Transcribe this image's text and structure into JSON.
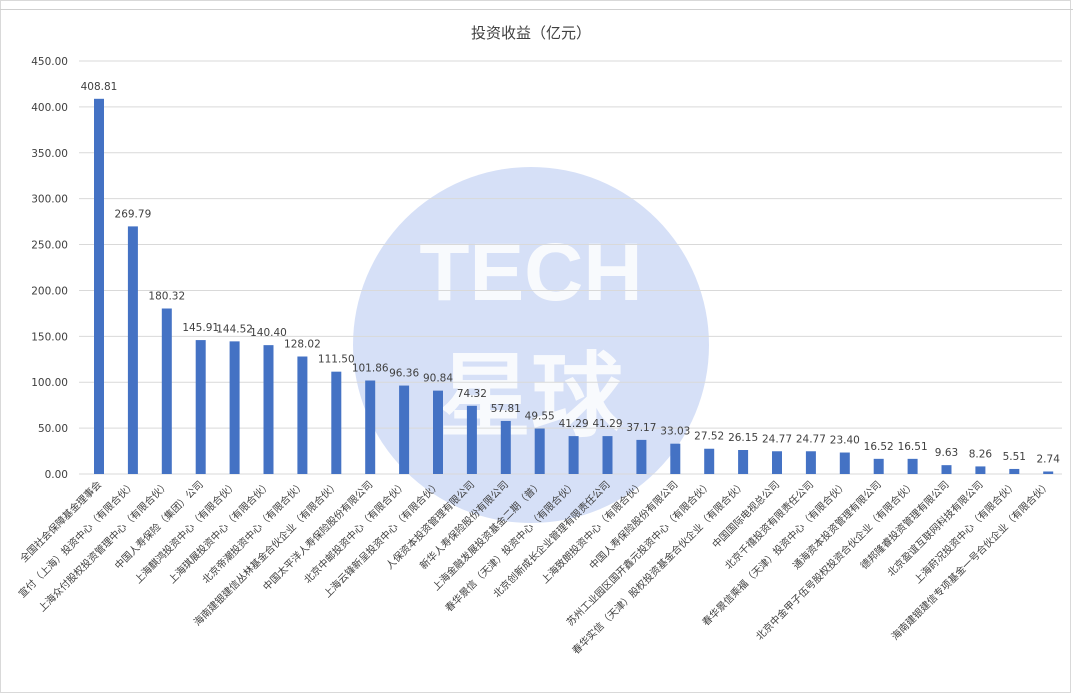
{
  "watermark": {
    "text_top": "TECH",
    "text_bottom": "星球",
    "color": "#6c8fe4"
  },
  "colors": {
    "bar": "#4472c4",
    "gridline": "#d9d9d9",
    "axis_text": "#404040",
    "title": "#404040"
  },
  "chart_data": {
    "type": "bar",
    "title": "投资收益（亿元）",
    "xlabel": "",
    "ylabel": "",
    "ylim": [
      0,
      450
    ],
    "yticks": [
      "0.00",
      "50.00",
      "100.00",
      "150.00",
      "200.00",
      "250.00",
      "300.00",
      "350.00",
      "400.00",
      "450.00"
    ],
    "grid": true,
    "legend": "none",
    "categories": [
      "全国社会保障基金理事会",
      "宣付（上海）投资中心（有限合伙）",
      "上海众付股权投资管理中心（有限合伙）",
      "中国人寿保险（集团）公司",
      "上海麒鸿投资中心（有限合伙）",
      "上海琪展投资中心（有限合伙）",
      "北京帝潮投资中心（有限合伙）",
      "海南建银建信丛林基金合伙企业（有限合伙）",
      "中国太平洋人寿保险股份有限公司",
      "北京中邮投资中心（有限合伙）",
      "上海云锋新呈投资中心（有限合伙）",
      "人保资本投资管理有限公司",
      "新华人寿保险股份有限公司",
      "上海金融发展投资基金二期（普）",
      "春华景信（天津）投资中心（有限合伙）",
      "北京创新成长企业管理有限责任公司",
      "上海致朗投资中心（有限合伙）",
      "中国人寿保险股份有限公司",
      "苏州工业园区国开鑫元投资中心（有限合伙）",
      "春华实信（天津）股权投资基金合伙企业（有限合伙）",
      "中国国际电视总公司",
      "北京千禧投资有限责任公司",
      "春华景信乘福（天津）投资中心（有限合伙）",
      "通海资本投资管理有限公司",
      "北京中金甲子伍号股权投资合伙企业（有限合伙）",
      "德邦隆睿投资管理有限公司",
      "北京盈谊互联网科技有限公司",
      "上海莳况投资中心（有限合伙）",
      "海南建银建信专项基金一号合伙企业（有限合伙）"
    ],
    "values": [
      408.81,
      269.79,
      180.32,
      145.91,
      144.52,
      140.4,
      128.02,
      111.5,
      101.86,
      96.36,
      90.84,
      74.32,
      57.81,
      49.55,
      41.29,
      41.29,
      37.17,
      33.03,
      27.52,
      26.15,
      24.77,
      24.77,
      23.4,
      16.52,
      16.51,
      9.63,
      8.26,
      5.51,
      2.74
    ],
    "data_labels": [
      "408.81",
      "269.79",
      "180.32",
      "145.91",
      "144.52",
      "140.40",
      "128.02",
      "111.50",
      "101.86",
      "96.36",
      "90.84",
      "74.32",
      "57.81",
      "49.55",
      "41.29",
      "41.29",
      "37.17",
      "33.03",
      "27.52",
      "26.15",
      "24.77",
      "24.77",
      "23.40",
      "16.52",
      "16.51",
      "9.63",
      "8.26",
      "5.51",
      "2.74"
    ]
  }
}
